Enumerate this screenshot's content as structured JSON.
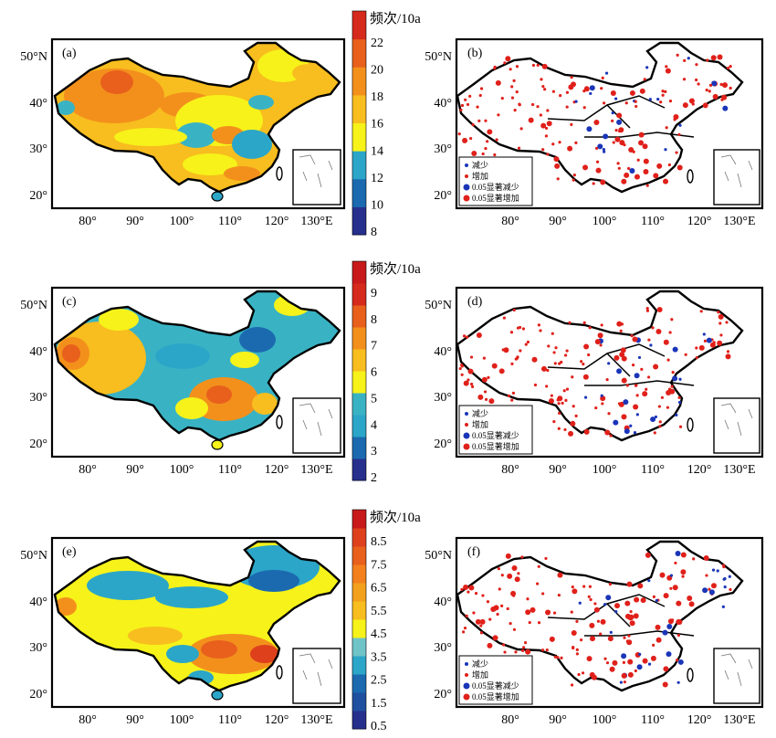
{
  "colors": {
    "frame": "#000000",
    "scale_a": [
      "#262f8c",
      "#1b6ab0",
      "#2ba6c8",
      "#f6f21a",
      "#f8bd1e",
      "#f3901c",
      "#e8601c",
      "#d52a1c"
    ],
    "scale_c": [
      "#262f8c",
      "#1b6ab0",
      "#2ba6c8",
      "#39b3c4",
      "#f6f21a",
      "#f8bd1e",
      "#f3901c",
      "#e8601c",
      "#d52a1c",
      "#c81a1a"
    ],
    "scale_e": [
      "#262f8c",
      "#1f4fa0",
      "#1b6ab0",
      "#2ba6c8",
      "#6fc4c8",
      "#f6f21a",
      "#f8bd1e",
      "#f3a01c",
      "#f3801c",
      "#e8601c",
      "#de401c",
      "#c81a1a"
    ],
    "decrease": "#1a35b8",
    "increase": "#e0201a"
  },
  "panels": [
    {
      "id": "a",
      "label": "(a)",
      "kind": "field",
      "lat_labels": [
        "50°N",
        "40°",
        "30°",
        "20°"
      ],
      "lon_labels": [
        "80°",
        "90°",
        "100°",
        "110°",
        "120°",
        "130°E"
      ]
    },
    {
      "id": "b",
      "label": "(b)",
      "kind": "trend",
      "lat_labels": [
        "50°N",
        "40°",
        "30°",
        "20°"
      ],
      "lon_labels": [
        "80°",
        "90°",
        "100°",
        "110°",
        "120°",
        "130°E"
      ]
    },
    {
      "id": "c",
      "label": "(c)",
      "kind": "field",
      "lat_labels": [
        "50°N",
        "40°",
        "30°",
        "20°"
      ],
      "lon_labels": [
        "80°",
        "90°",
        "100°",
        "110°",
        "120°",
        "130°E"
      ]
    },
    {
      "id": "d",
      "label": "(d)",
      "kind": "trend",
      "lat_labels": [
        "50°N",
        "40°",
        "30°",
        "20°"
      ],
      "lon_labels": [
        "80°",
        "90°",
        "100°",
        "110°",
        "120°",
        "130°E"
      ]
    },
    {
      "id": "e",
      "label": "(e)",
      "kind": "field",
      "lat_labels": [
        "50°N",
        "40°",
        "30°",
        "20°"
      ],
      "lon_labels": [
        "80°",
        "90°",
        "100°",
        "110°",
        "120°",
        "130°E"
      ]
    },
    {
      "id": "f",
      "label": "(f)",
      "kind": "trend",
      "lat_labels": [
        "50°N",
        "40°",
        "30°",
        "20°"
      ],
      "lon_labels": [
        "80°",
        "90°",
        "100°",
        "110°",
        "120°",
        "130°E"
      ]
    }
  ],
  "colorbars": [
    {
      "title": "频次/10a",
      "ticks": [
        "22",
        "20",
        "18",
        "16",
        "14",
        "12",
        "10",
        "8"
      ]
    },
    {
      "title": "频次/10a",
      "ticks": [
        "9",
        "8",
        "7",
        "6",
        "5",
        "4",
        "3",
        "2"
      ]
    },
    {
      "title": "频次/10a",
      "ticks": [
        "8.5",
        "7.5",
        "6.5",
        "5.5",
        "4.5",
        "3.5",
        "2.5",
        "1.5",
        "0.5"
      ]
    }
  ],
  "legend": [
    "减少",
    "增加",
    "0.05显著减少",
    "0.05显著增加"
  ]
}
